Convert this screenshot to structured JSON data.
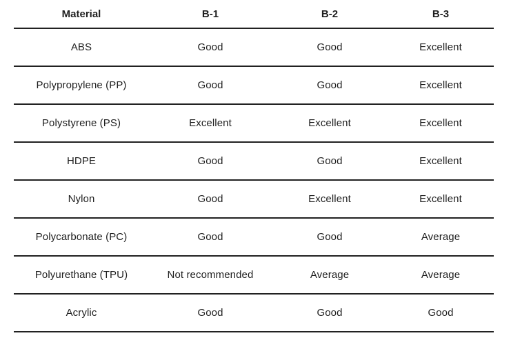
{
  "colors": {
    "background": "#ffffff",
    "text": "#1e1e1e",
    "rule_line": "#212121"
  },
  "chart_data": {
    "type": "table",
    "title": "",
    "columns": [
      "Material",
      "B-1",
      "B-2",
      "B-3"
    ],
    "rows": [
      [
        "ABS",
        "Good",
        "Good",
        "Excellent"
      ],
      [
        "Polypropylene (PP)",
        "Good",
        "Good",
        "Excellent"
      ],
      [
        "Polystyrene (PS)",
        "Excellent",
        "Excellent",
        "Excellent"
      ],
      [
        "HDPE",
        "Good",
        "Good",
        "Excellent"
      ],
      [
        "Nylon",
        "Good",
        "Excellent",
        "Excellent"
      ],
      [
        "Polycarbonate (PC)",
        "Good",
        "Good",
        "Average"
      ],
      [
        "Polyurethane (TPU)",
        "Not recommended",
        "Average",
        "Average"
      ],
      [
        "Acrylic",
        "Good",
        "Good",
        "Good"
      ]
    ],
    "layout": {
      "grid": "horizontal-rules-only",
      "header_bold": true,
      "cell_alignment": "center"
    }
  }
}
